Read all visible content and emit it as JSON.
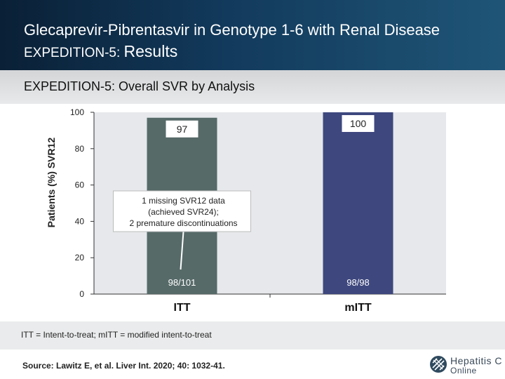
{
  "header": {
    "title_line1": "Glecaprevir-Pibrentasvir in Genotype 1-6 with Renal Disease",
    "title_line2_prefix": "EXPEDITION-5: ",
    "title_line2_main": "Results"
  },
  "subtitle": "EXPEDITION-5: Overall SVR by Analysis",
  "chart_data": {
    "type": "bar",
    "categories": [
      "ITT",
      "mITT"
    ],
    "values": [
      97,
      100
    ],
    "bar_labels": [
      "97",
      "100"
    ],
    "n_labels": [
      "98/101",
      "98/98"
    ],
    "bar_colors": [
      "#566a68",
      "#3e477e"
    ],
    "ylabel": "Patients (%) SVR12",
    "ylim": [
      0,
      100
    ],
    "yticks": [
      0,
      20,
      40,
      60,
      80,
      100
    ],
    "ytick_labels": [
      "0",
      "20",
      "40",
      "60",
      "80",
      "100"
    ],
    "plot_background": "#e6e8eb",
    "annotation": {
      "lines": [
        "1 missing SVR12 data",
        "(achieved SVR24);",
        "2 premature discontinuations"
      ],
      "target_category": "ITT"
    }
  },
  "footnote": "ITT = Intent-to-treat; mITT = modified intent-to-treat",
  "source": "Source: Lawitz E, et al. Liver Int. 2020; 40: 1032-41.",
  "logo": {
    "line1": "Hepatitis C",
    "line2": "Online"
  }
}
